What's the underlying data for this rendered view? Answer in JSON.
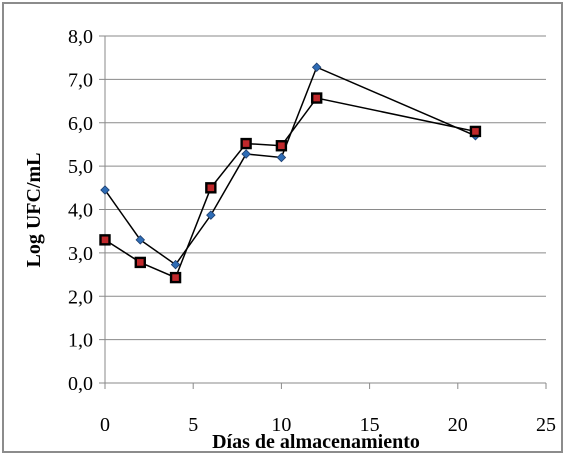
{
  "chart_data": {
    "type": "line",
    "title": "",
    "xlabel": "Días de almacenamiento",
    "ylabel": "Log UFC/mL",
    "xlim": [
      0,
      25
    ],
    "ylim": [
      0,
      8
    ],
    "xticks": [
      "0",
      "5",
      "10",
      "15",
      "20",
      "25"
    ],
    "yticks": [
      "0,0",
      "1,0",
      "2,0",
      "3,0",
      "4,0",
      "5,0",
      "6,0",
      "7,0",
      "8,0"
    ],
    "grid": "horizontal",
    "legend": "none",
    "series": [
      {
        "marker": "diamond",
        "color": "#2e6cb5",
        "x": [
          0,
          2,
          4,
          6,
          8,
          10,
          12,
          21
        ],
        "y": [
          4.45,
          3.3,
          2.73,
          3.87,
          5.28,
          5.2,
          7.28,
          5.7
        ]
      },
      {
        "marker": "square",
        "color": "#c0282b",
        "x": [
          0,
          2,
          4,
          6,
          8,
          10,
          12,
          21
        ],
        "y": [
          3.3,
          2.78,
          2.43,
          4.5,
          5.52,
          5.47,
          6.57,
          5.8
        ]
      }
    ]
  }
}
